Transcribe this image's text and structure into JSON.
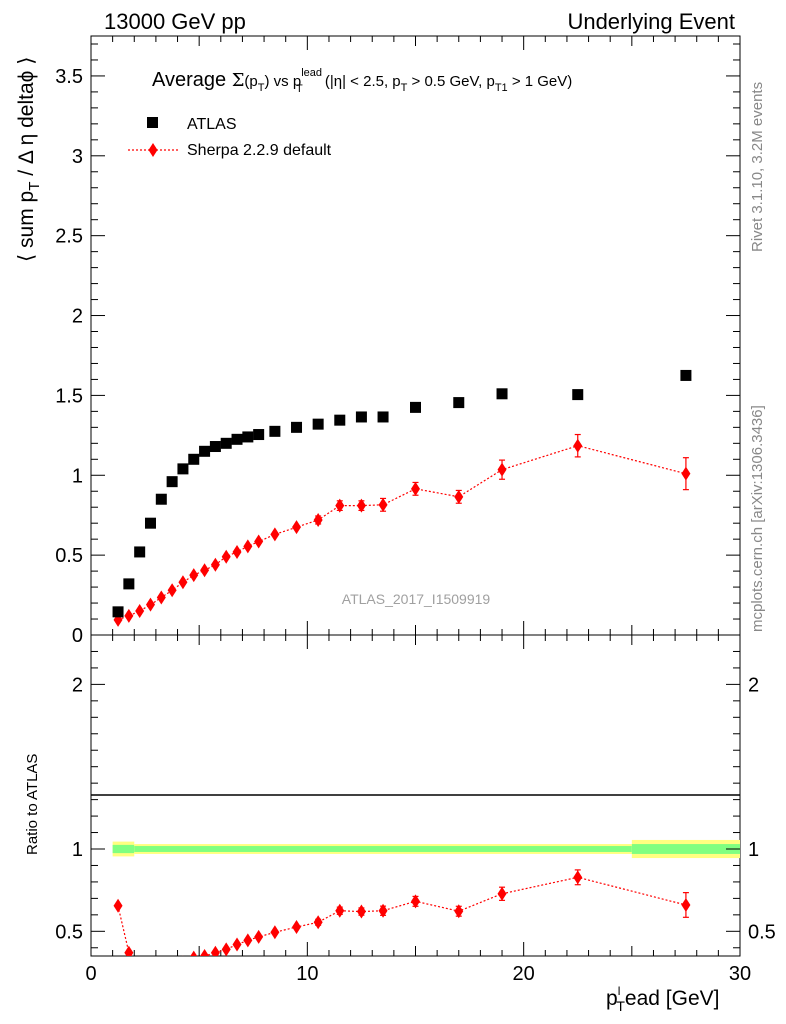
{
  "header": {
    "left": "13000 GeV pp",
    "right": "Underlying Event"
  },
  "side_text": {
    "rivet": "Rivet 3.1.10,  3.2M events",
    "mcplots": "mcplots.cern.ch [arXiv:1306.3436]"
  },
  "plot_title": {
    "avg": "Average ",
    "sigma": "Σ",
    "sigma_arg": "(p",
    "sigma_arg_sub": "T",
    "sigma_close": ")",
    "vs": " vs p",
    "vs_sup": "lead",
    "vs_sub": "T",
    "rest1": " (|η| < 2.5, p",
    "rest1_sub": "T",
    "rest2": " > 0.5 GeV, p",
    "rest2_sub": "T1",
    "rest3": " > 1 GeV)"
  },
  "y_axis_main": {
    "l1": "⟨ sum p",
    "l1_sub": "T",
    "l2": " / Δ η deltaϕ ⟩"
  },
  "x_axis": {
    "l1": "p",
    "l1_sup": "l",
    "l1_sub": "T",
    "l2": "ead [GeV]"
  },
  "ratio_ylabel": "Ratio to ATLAS",
  "watermark": "ATLAS_2017_I1509919",
  "legend": [
    {
      "name": "ATLAS",
      "color": "#000000",
      "marker": "square"
    },
    {
      "name": "Sherpa 2.2.9 default",
      "color": "#ff0000",
      "marker": "diamond",
      "line": "dotted"
    }
  ],
  "chart_data": {
    "type": "scatter",
    "x_range": [
      0,
      30
    ],
    "main_ylim": [
      0,
      3.75
    ],
    "ratio_ylim": [
      0.35,
      2.3
    ],
    "x_ticks": [
      0,
      10,
      20,
      30
    ],
    "main_y_ticks": [
      0,
      0.5,
      1,
      1.5,
      2,
      2.5,
      3,
      3.5
    ],
    "ratio_y_ticks": [
      0.5,
      1,
      2
    ],
    "tick_labels": {
      "x": [
        "0",
        "10",
        "20",
        "30"
      ],
      "main_y": [
        "0",
        "0.5",
        "1",
        "1.5",
        "2",
        "2.5",
        "3",
        "3.5"
      ],
      "ratio_y": [
        "0.5",
        "1",
        "2"
      ]
    },
    "atlas": {
      "x": [
        1.25,
        1.75,
        2.25,
        2.75,
        3.25,
        3.75,
        4.25,
        4.75,
        5.25,
        5.75,
        6.25,
        6.75,
        7.25,
        7.75,
        8.5,
        9.5,
        10.5,
        11.5,
        12.5,
        13.5,
        15,
        17,
        19,
        22.5,
        27.5
      ],
      "y": [
        0.145,
        0.32,
        0.52,
        0.7,
        0.85,
        0.96,
        1.04,
        1.1,
        1.15,
        1.18,
        1.2,
        1.225,
        1.24,
        1.255,
        1.275,
        1.3,
        1.32,
        1.345,
        1.365,
        1.365,
        1.425,
        1.455,
        1.51,
        1.505,
        1.625
      ]
    },
    "sherpa": {
      "x": [
        1.25,
        1.75,
        2.25,
        2.75,
        3.25,
        3.75,
        4.25,
        4.75,
        5.25,
        5.75,
        6.25,
        6.75,
        7.25,
        7.75,
        8.5,
        9.5,
        10.5,
        11.5,
        12.5,
        13.5,
        15,
        17,
        19,
        22.5,
        27.5
      ],
      "y": [
        0.095,
        0.12,
        0.15,
        0.19,
        0.235,
        0.28,
        0.33,
        0.375,
        0.405,
        0.44,
        0.49,
        0.52,
        0.555,
        0.585,
        0.63,
        0.675,
        0.72,
        0.81,
        0.81,
        0.815,
        0.915,
        0.865,
        1.035,
        1.185,
        1.01
      ],
      "yerr": [
        0.01,
        0.01,
        0.01,
        0.01,
        0.01,
        0.01,
        0.012,
        0.012,
        0.012,
        0.012,
        0.015,
        0.015,
        0.015,
        0.015,
        0.02,
        0.02,
        0.025,
        0.03,
        0.03,
        0.04,
        0.04,
        0.04,
        0.06,
        0.07,
        0.1
      ]
    },
    "ratio": {
      "x": [
        1.25,
        1.75,
        2.25,
        2.75,
        3.25,
        3.75,
        4.25,
        4.75,
        5.25,
        5.75,
        6.25,
        6.75,
        7.25,
        7.75,
        8.5,
        9.5,
        10.5,
        11.5,
        12.5,
        13.5,
        15,
        17,
        19,
        22.5,
        27.5
      ],
      "y": [
        0.655,
        0.37,
        0.29,
        0.27,
        0.28,
        0.29,
        0.31,
        0.34,
        0.35,
        0.37,
        0.39,
        0.42,
        0.445,
        0.466,
        0.494,
        0.526,
        0.555,
        0.625,
        0.62,
        0.625,
        0.682,
        0.622,
        0.728,
        0.828,
        0.66
      ],
      "yerr": [
        0.01,
        0.01,
        0.01,
        0.01,
        0.01,
        0.01,
        0.01,
        0.01,
        0.01,
        0.01,
        0.012,
        0.012,
        0.012,
        0.012,
        0.015,
        0.015,
        0.018,
        0.022,
        0.022,
        0.028,
        0.03,
        0.03,
        0.04,
        0.045,
        0.075
      ]
    },
    "bands": {
      "x_edges": [
        1.0,
        2.0,
        25.0,
        30.0
      ],
      "outer_halfwidth": [
        0.045,
        0.03,
        0.055
      ],
      "inner_halfwidth": [
        0.025,
        0.018,
        0.03
      ],
      "outer_color": "#ffff80",
      "inner_color": "#80ff80"
    }
  }
}
